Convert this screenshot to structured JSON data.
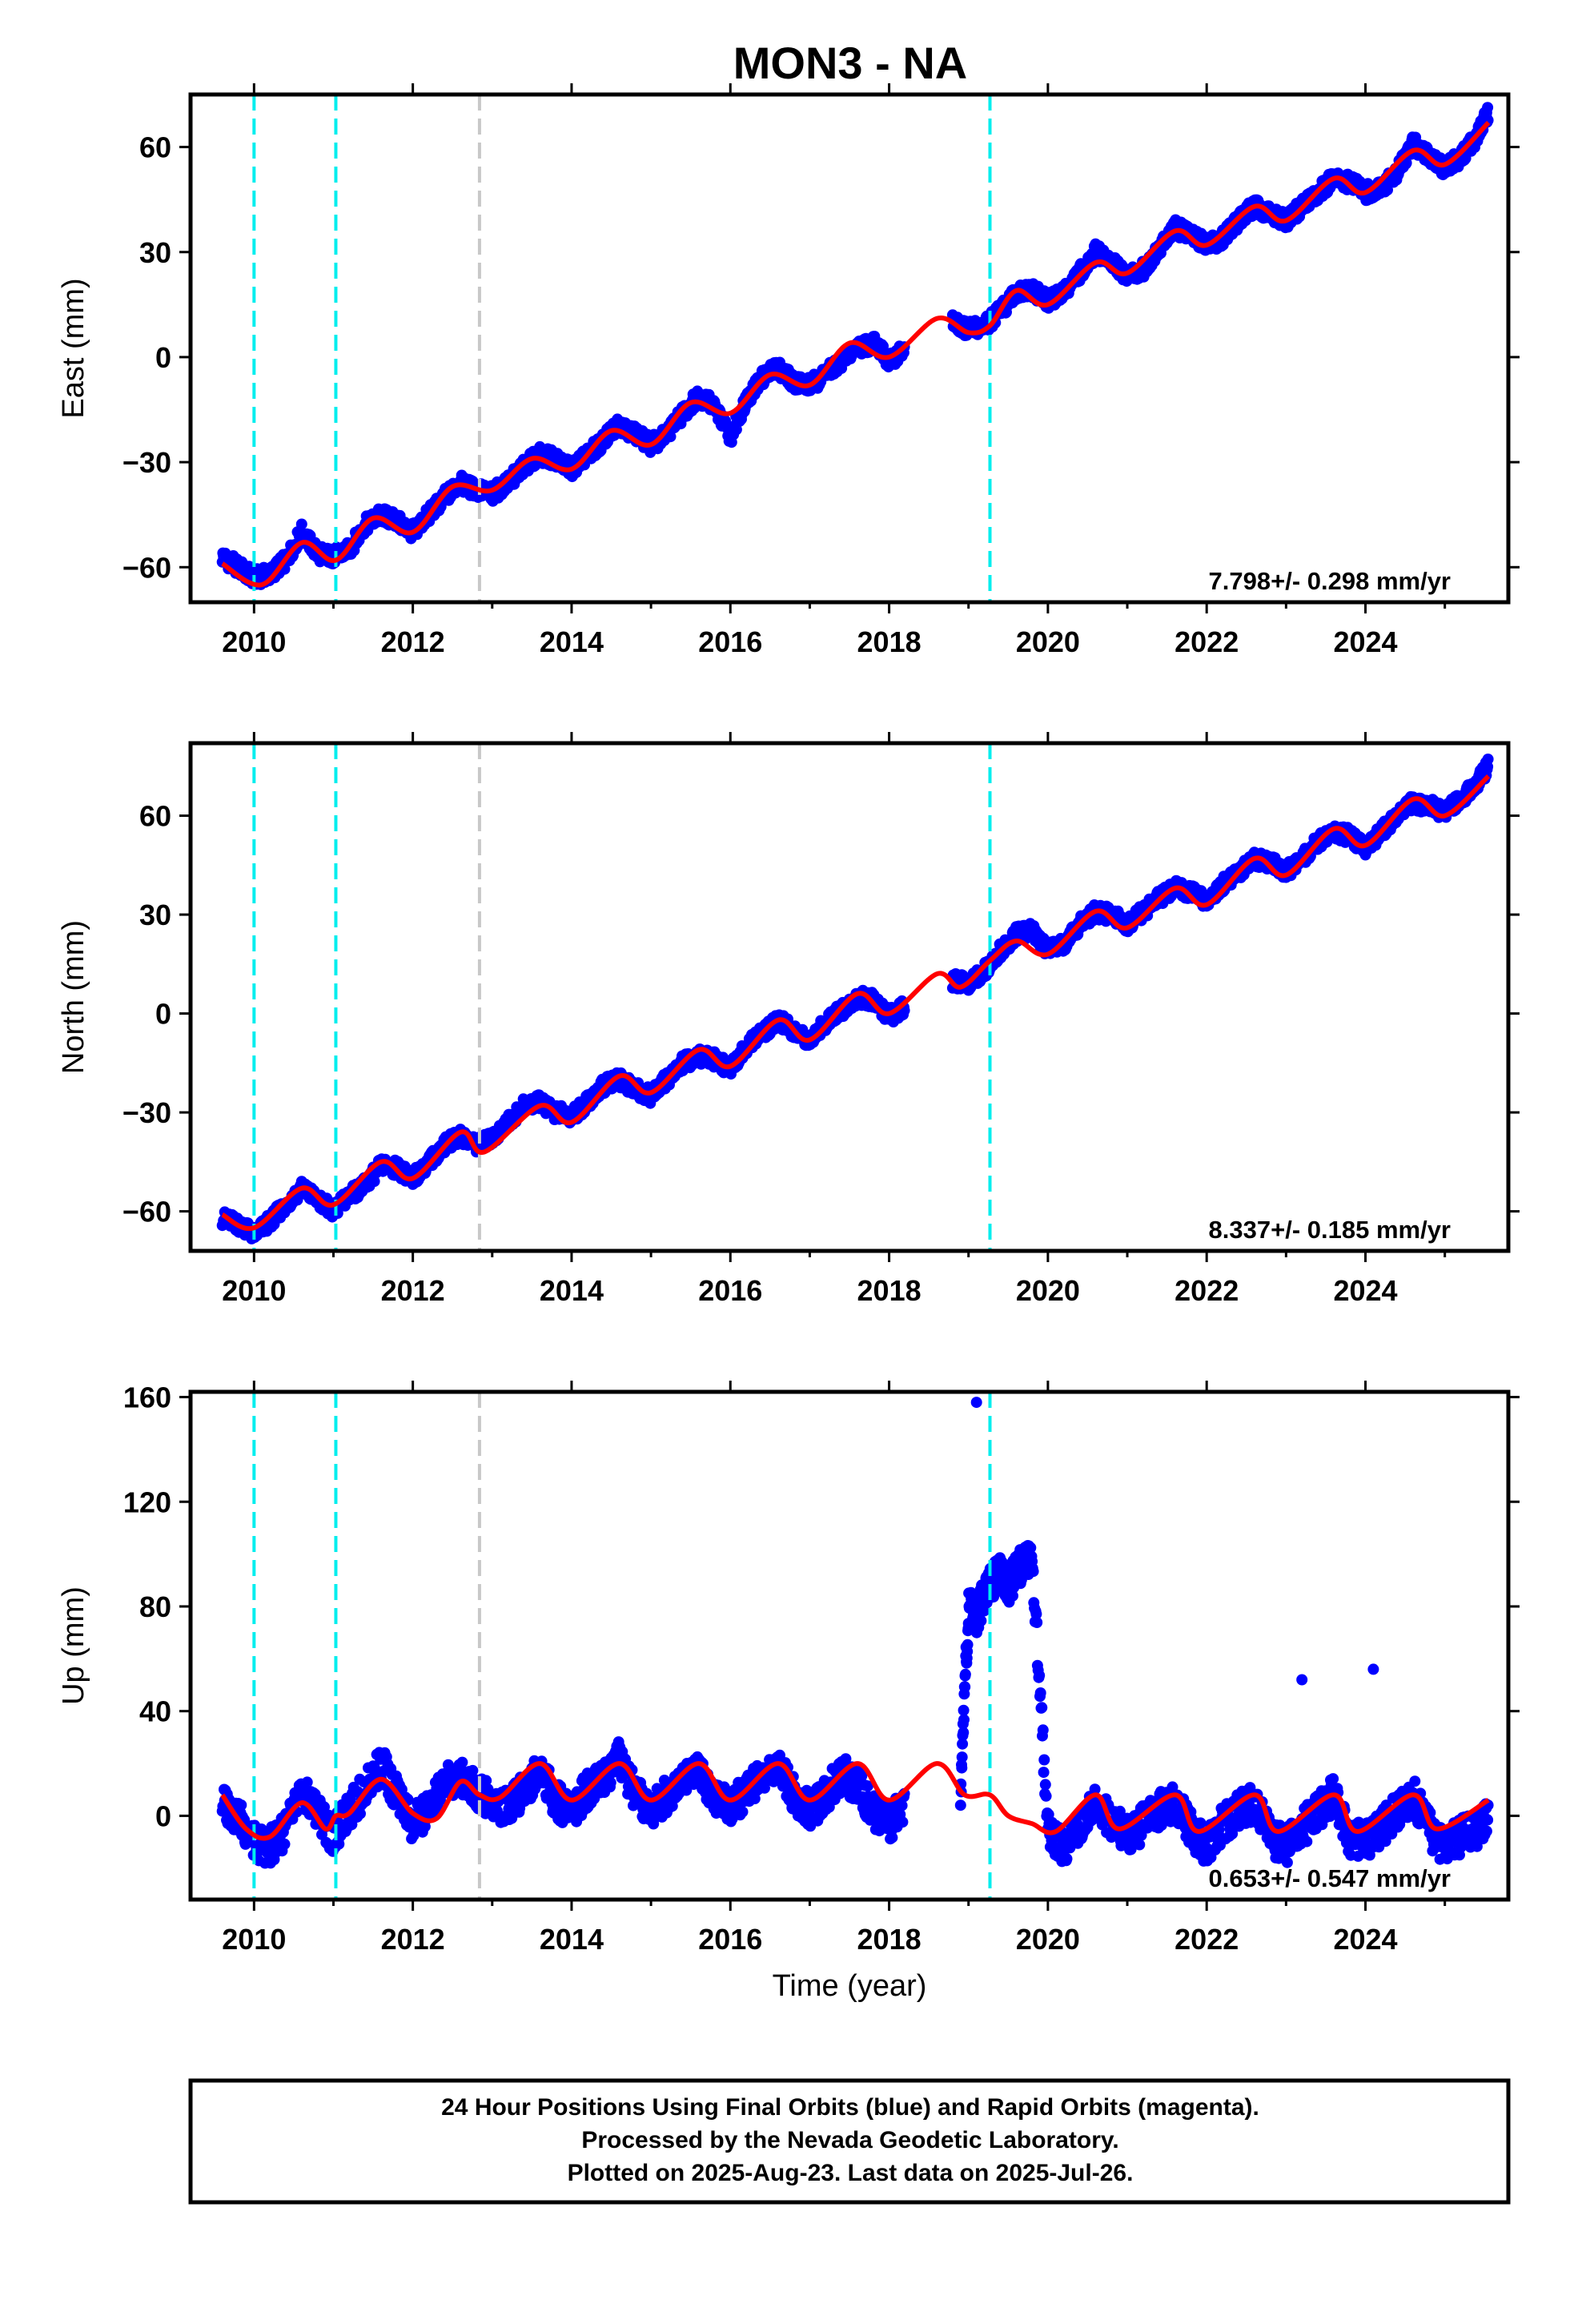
{
  "title": "MON3 - NA",
  "colors": {
    "final_orbits": "#0000ff",
    "model_fit": "#ff0000",
    "equipment_change": "#00eeee",
    "other_event": "#c8c8c8",
    "frame": "#000000"
  },
  "chart_data": [
    {
      "type": "scatter",
      "component": "east",
      "ylabel": "East (mm)",
      "xlabel": "",
      "xlim": [
        2009.2,
        2025.8
      ],
      "ylim": [
        -70,
        75
      ],
      "yticks": [
        -60,
        -30,
        0,
        30,
        60
      ],
      "xticks": [
        2010,
        2012,
        2014,
        2016,
        2018,
        2020,
        2022,
        2024
      ],
      "grid": false,
      "rate_label": "7.798+/- 0.298 mm/yr",
      "vertical_lines": [
        {
          "x": 2010.0,
          "kind": "equipment_change"
        },
        {
          "x": 2011.03,
          "kind": "equipment_change"
        },
        {
          "x": 2012.84,
          "kind": "other_event"
        },
        {
          "x": 2019.27,
          "kind": "equipment_change"
        }
      ],
      "model": {
        "x": [
          2009.6,
          2010.1,
          2010.6,
          2011.03,
          2011.5,
          2012.0,
          2012.5,
          2013.0,
          2013.5,
          2014.0,
          2014.5,
          2015.0,
          2015.5,
          2016.0,
          2016.5,
          2017.0,
          2017.5,
          2018.0,
          2018.6,
          2019.0,
          2019.27,
          2019.6,
          2020.0,
          2020.6,
          2021.0,
          2021.6,
          2022.0,
          2022.6,
          2023.0,
          2023.6,
          2024.0,
          2024.6,
          2025.0,
          2025.55
        ],
        "y": [
          -59,
          -65,
          -53,
          -58,
          -46,
          -50,
          -37,
          -38,
          -29,
          -32,
          -21,
          -25,
          -13,
          -16,
          -5,
          -8,
          4,
          0,
          11,
          7,
          9,
          19,
          15,
          27,
          24,
          36,
          32,
          43,
          39,
          51,
          47,
          59,
          55,
          67
        ]
      },
      "points": {
        "x": [
          2009.6,
          2009.8,
          2010.0,
          2010.2,
          2010.4,
          2010.6,
          2010.8,
          2011.0,
          2011.2,
          2011.4,
          2011.6,
          2011.8,
          2012.0,
          2012.2,
          2012.4,
          2012.6,
          2012.8,
          2013.0,
          2013.2,
          2013.4,
          2013.6,
          2013.8,
          2014.0,
          2014.2,
          2014.4,
          2014.6,
          2014.8,
          2015.0,
          2015.2,
          2015.4,
          2015.6,
          2015.8,
          2016.0,
          2016.2,
          2016.4,
          2016.6,
          2016.8,
          2017.0,
          2017.2,
          2017.4,
          2017.6,
          2017.8,
          2018.0,
          2018.2,
          2018.8,
          2019.0,
          2019.2,
          2019.4,
          2019.6,
          2019.8,
          2020.0,
          2020.2,
          2020.4,
          2020.6,
          2020.8,
          2021.0,
          2021.2,
          2021.4,
          2021.6,
          2021.8,
          2022.0,
          2022.2,
          2022.4,
          2022.6,
          2022.8,
          2023.0,
          2023.2,
          2023.4,
          2023.6,
          2023.8,
          2024.0,
          2024.2,
          2024.4,
          2024.6,
          2024.8,
          2025.0,
          2025.2,
          2025.4,
          2025.55
        ],
        "y": [
          -57,
          -60,
          -63,
          -62,
          -58,
          -50,
          -56,
          -57,
          -55,
          -48,
          -45,
          -47,
          -50,
          -45,
          -40,
          -36,
          -38,
          -39,
          -36,
          -31,
          -28,
          -29,
          -32,
          -28,
          -24,
          -19,
          -22,
          -25,
          -22,
          -16,
          -11,
          -14,
          -23,
          -12,
          -6,
          -3,
          -7,
          -8,
          -5,
          -1,
          3,
          4,
          -1,
          2,
          10,
          8,
          9,
          13,
          18,
          19,
          16,
          18,
          24,
          30,
          28,
          23,
          25,
          31,
          37,
          35,
          32,
          34,
          39,
          43,
          41,
          39,
          43,
          47,
          51,
          50,
          47,
          48,
          53,
          61,
          57,
          54,
          57,
          63,
          70
        ]
      }
    },
    {
      "type": "scatter",
      "component": "north",
      "ylabel": "North (mm)",
      "xlabel": "",
      "xlim": [
        2009.2,
        2025.8
      ],
      "ylim": [
        -72,
        82
      ],
      "yticks": [
        -60,
        -30,
        0,
        30,
        60
      ],
      "xticks": [
        2010,
        2012,
        2014,
        2016,
        2018,
        2020,
        2022,
        2024
      ],
      "grid": false,
      "rate_label": "8.337+/- 0.185 mm/yr",
      "vertical_lines": [
        {
          "x": 2010.0,
          "kind": "equipment_change"
        },
        {
          "x": 2011.03,
          "kind": "equipment_change"
        },
        {
          "x": 2012.84,
          "kind": "other_event"
        },
        {
          "x": 2019.27,
          "kind": "equipment_change"
        }
      ],
      "model": {
        "x": [
          2009.6,
          2010.0,
          2010.6,
          2011.0,
          2011.6,
          2012.0,
          2012.6,
          2012.9,
          2013.6,
          2014.0,
          2014.6,
          2015.0,
          2015.6,
          2016.0,
          2016.6,
          2017.0,
          2017.6,
          2018.0,
          2018.6,
          2018.9,
          2019.27,
          2019.6,
          2020.0,
          2020.6,
          2021.0,
          2021.6,
          2022.0,
          2022.6,
          2023.0,
          2023.6,
          2024.0,
          2024.6,
          2025.0,
          2025.55
        ],
        "y": [
          -61,
          -65,
          -53,
          -58,
          -45,
          -50,
          -36,
          -42,
          -28,
          -33,
          -19,
          -24,
          -11,
          -16,
          -2,
          -8,
          6,
          0,
          12,
          8,
          16,
          22,
          18,
          31,
          26,
          38,
          33,
          47,
          42,
          56,
          51,
          65,
          60,
          72
        ]
      },
      "points": {
        "x": [
          2009.6,
          2009.8,
          2010.0,
          2010.2,
          2010.4,
          2010.6,
          2010.8,
          2011.0,
          2011.2,
          2011.4,
          2011.6,
          2011.8,
          2012.0,
          2012.2,
          2012.4,
          2012.6,
          2012.8,
          2013.0,
          2013.2,
          2013.4,
          2013.6,
          2013.8,
          2014.0,
          2014.2,
          2014.4,
          2014.6,
          2014.8,
          2015.0,
          2015.2,
          2015.4,
          2015.6,
          2015.8,
          2016.0,
          2016.2,
          2016.4,
          2016.6,
          2016.8,
          2017.0,
          2017.2,
          2017.4,
          2017.6,
          2017.8,
          2018.0,
          2018.2,
          2018.8,
          2019.0,
          2019.2,
          2019.4,
          2019.6,
          2019.8,
          2020.0,
          2020.2,
          2020.4,
          2020.6,
          2020.8,
          2021.0,
          2021.2,
          2021.4,
          2021.6,
          2021.8,
          2022.0,
          2022.2,
          2022.4,
          2022.6,
          2022.8,
          2023.0,
          2023.2,
          2023.4,
          2023.6,
          2023.8,
          2024.0,
          2024.2,
          2024.4,
          2024.6,
          2024.8,
          2025.0,
          2025.2,
          2025.4,
          2025.55
        ],
        "y": [
          -62,
          -64,
          -67,
          -63,
          -58,
          -53,
          -56,
          -60,
          -55,
          -52,
          -46,
          -47,
          -50,
          -45,
          -40,
          -37,
          -40,
          -38,
          -33,
          -28,
          -27,
          -30,
          -31,
          -27,
          -22,
          -20,
          -23,
          -25,
          -20,
          -15,
          -13,
          -14,
          -17,
          -10,
          -6,
          -2,
          -5,
          -8,
          -3,
          1,
          5,
          4,
          -1,
          2,
          10,
          9,
          13,
          19,
          24,
          25,
          19,
          21,
          27,
          31,
          30,
          27,
          31,
          35,
          38,
          37,
          34,
          39,
          43,
          47,
          46,
          43,
          47,
          52,
          55,
          54,
          50,
          55,
          60,
          64,
          63,
          61,
          65,
          70,
          75
        ]
      }
    },
    {
      "type": "scatter",
      "component": "up",
      "ylabel": "Up (mm)",
      "xlabel": "Time (year)",
      "xlim": [
        2009.2,
        2025.8
      ],
      "ylim": [
        -32,
        162
      ],
      "yticks": [
        0,
        40,
        80,
        120,
        160
      ],
      "xticks": [
        2010,
        2012,
        2014,
        2016,
        2018,
        2020,
        2022,
        2024
      ],
      "grid": false,
      "rate_label": "0.653+/- 0.547 mm/yr",
      "vertical_lines": [
        {
          "x": 2010.0,
          "kind": "equipment_change"
        },
        {
          "x": 2011.03,
          "kind": "equipment_change"
        },
        {
          "x": 2012.84,
          "kind": "other_event"
        },
        {
          "x": 2019.27,
          "kind": "equipment_change"
        }
      ],
      "model": {
        "x": [
          2009.6,
          2009.9,
          2010.2,
          2010.6,
          2010.9,
          2011.03,
          2011.2,
          2011.6,
          2012.0,
          2012.3,
          2012.6,
          2012.84,
          2013.1,
          2013.6,
          2014.0,
          2014.6,
          2015.0,
          2015.6,
          2016.0,
          2016.6,
          2017.0,
          2017.6,
          2018.0,
          2018.6,
          2018.95,
          2019.27,
          2019.5,
          2019.8,
          2020.1,
          2020.6,
          2020.9,
          2021.6,
          2021.9,
          2022.6,
          2022.9,
          2023.6,
          2023.9,
          2024.6,
          2024.9,
          2025.55
        ],
        "y": [
          8,
          -5,
          -8,
          5,
          -5,
          0,
          1,
          14,
          1,
          -1,
          13,
          8,
          7,
          20,
          6,
          20,
          6,
          20,
          6,
          20,
          6,
          20,
          6,
          20,
          8,
          8,
          0,
          -3,
          -6,
          8,
          -5,
          8,
          -6,
          8,
          -6,
          8,
          -6,
          8,
          -5,
          6
        ]
      },
      "points": {
        "x": [
          2009.6,
          2009.8,
          2010.0,
          2010.2,
          2010.4,
          2010.6,
          2010.8,
          2011.0,
          2011.2,
          2011.4,
          2011.6,
          2011.8,
          2012.0,
          2012.2,
          2012.4,
          2012.6,
          2012.8,
          2013.0,
          2013.2,
          2013.4,
          2013.6,
          2013.8,
          2014.0,
          2014.2,
          2014.4,
          2014.6,
          2014.8,
          2015.0,
          2015.2,
          2015.4,
          2015.6,
          2015.8,
          2016.0,
          2016.2,
          2016.4,
          2016.6,
          2016.8,
          2017.0,
          2017.2,
          2017.4,
          2017.6,
          2017.8,
          2018.0,
          2018.2,
          2018.9,
          2019.0,
          2019.1,
          2019.2,
          2019.3,
          2019.4,
          2019.5,
          2019.65,
          2019.8,
          2020.0,
          2020.2,
          2020.4,
          2020.6,
          2020.8,
          2021.0,
          2021.2,
          2021.4,
          2021.6,
          2021.8,
          2022.0,
          2022.2,
          2022.4,
          2022.6,
          2022.8,
          2023.0,
          2023.2,
          2023.4,
          2023.6,
          2023.8,
          2024.0,
          2024.2,
          2024.4,
          2024.6,
          2024.8,
          2025.0,
          2025.2,
          2025.4,
          2025.55
        ],
        "y": [
          5,
          0,
          -10,
          -12,
          -5,
          8,
          2,
          -8,
          2,
          10,
          20,
          8,
          -3,
          2,
          12,
          15,
          10,
          5,
          3,
          10,
          18,
          6,
          2,
          10,
          15,
          22,
          8,
          2,
          8,
          15,
          18,
          8,
          2,
          10,
          15,
          18,
          8,
          2,
          8,
          16,
          12,
          2,
          -3,
          5,
          10,
          80,
          75,
          85,
          90,
          93,
          88,
          95,
          100,
          -5,
          -12,
          -5,
          5,
          -2,
          -8,
          -3,
          2,
          5,
          -5,
          -12,
          -3,
          2,
          5,
          -8,
          -12,
          -5,
          2,
          8,
          -8,
          -10,
          -5,
          2,
          8,
          -5,
          -12,
          -8,
          -5,
          0
        ]
      },
      "outliers": {
        "x": [
          2019.1,
          2023.2,
          2024.1
        ],
        "y": [
          158,
          52,
          56
        ]
      }
    }
  ],
  "footer": {
    "line1": "24 Hour Positions Using Final Orbits (blue) and Rapid Orbits (magenta).",
    "line2": "Processed by the Nevada Geodetic Laboratory.",
    "line3": "Plotted on 2025-Aug-23. Last data on 2025-Jul-26."
  }
}
